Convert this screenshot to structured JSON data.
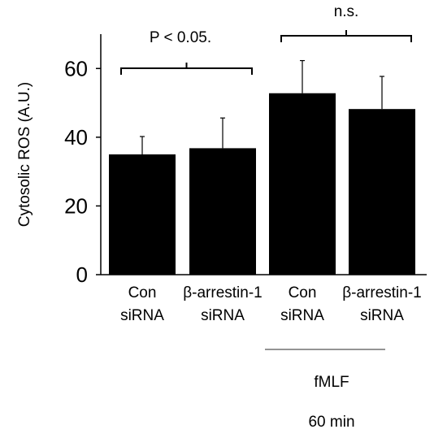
{
  "chart_data": {
    "type": "bar",
    "ylabel": "Cytosolic ROS (A.U.)",
    "ylim": [
      0,
      70
    ],
    "yticks": [
      0,
      20,
      40,
      60
    ],
    "grid": false,
    "bar_color": "#000000",
    "categories": [
      [
        "Con",
        "siRNA"
      ],
      [
        "β-arrestin-1",
        "siRNA"
      ],
      [
        "Con",
        "siRNA"
      ],
      [
        "β-arrestin-1",
        "siRNA"
      ]
    ],
    "values": [
      35,
      36.8,
      52.8,
      48.2
    ],
    "errors": [
      5.2,
      8.8,
      9.5,
      9.5
    ],
    "significance": [
      {
        "between": [
          0,
          1
        ],
        "label": "P < 0.05."
      },
      {
        "between": [
          2,
          3
        ],
        "label": "n.s."
      }
    ],
    "group_annotation": {
      "spans": [
        2,
        3
      ],
      "lines": [
        "fMLF",
        "60 min"
      ]
    }
  }
}
